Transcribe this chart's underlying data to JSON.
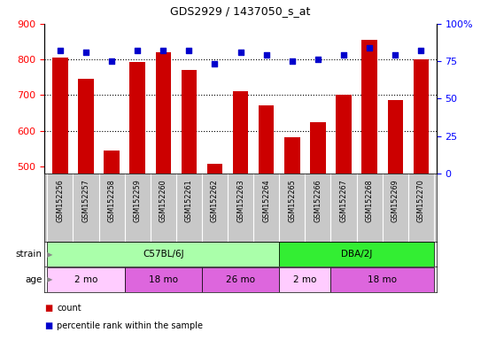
{
  "title": "GDS2929 / 1437050_s_at",
  "samples": [
    "GSM152256",
    "GSM152257",
    "GSM152258",
    "GSM152259",
    "GSM152260",
    "GSM152261",
    "GSM152262",
    "GSM152263",
    "GSM152264",
    "GSM152265",
    "GSM152266",
    "GSM152267",
    "GSM152268",
    "GSM152269",
    "GSM152270"
  ],
  "counts": [
    805,
    745,
    543,
    793,
    820,
    770,
    507,
    712,
    672,
    582,
    623,
    700,
    855,
    685,
    800
  ],
  "percentiles": [
    82,
    81,
    75,
    82,
    82,
    82,
    73,
    81,
    79,
    75,
    76,
    79,
    84,
    79,
    82
  ],
  "ymin": 480,
  "ymax": 900,
  "yticks": [
    500,
    600,
    700,
    800,
    900
  ],
  "y2ticks": [
    0,
    25,
    50,
    75,
    100
  ],
  "y2labels": [
    "0",
    "25",
    "50",
    "75",
    "100%"
  ],
  "bar_color": "#cc0000",
  "scatter_color": "#0000cc",
  "strain_groups": [
    {
      "label": "C57BL/6J",
      "start": 0,
      "end": 9,
      "color": "#aaffaa"
    },
    {
      "label": "DBA/2J",
      "start": 9,
      "end": 15,
      "color": "#33ee33"
    }
  ],
  "age_groups": [
    {
      "label": "2 mo",
      "start": 0,
      "end": 3,
      "color": "#ffccff"
    },
    {
      "label": "18 mo",
      "start": 3,
      "end": 6,
      "color": "#dd66dd"
    },
    {
      "label": "26 mo",
      "start": 6,
      "end": 9,
      "color": "#dd66dd"
    },
    {
      "label": "2 mo",
      "start": 9,
      "end": 11,
      "color": "#ffccff"
    },
    {
      "label": "18 mo",
      "start": 11,
      "end": 15,
      "color": "#dd66dd"
    }
  ],
  "legend_count_label": "count",
  "legend_percentile_label": "percentile rank within the sample",
  "xlabel_strain": "strain",
  "xlabel_age": "age",
  "label_area_color": "#c8c8c8"
}
